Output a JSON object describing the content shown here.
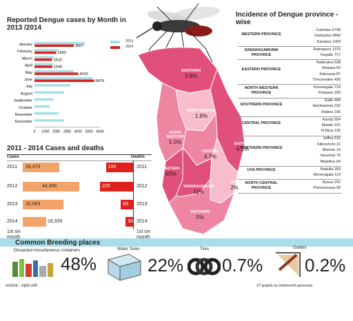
{
  "chart_data": [
    {
      "type": "bar",
      "title": "Reported Dengue cases by Month in 2013 /2014",
      "categories": [
        "January",
        "February",
        "March",
        "April",
        "May",
        "June",
        "July",
        "August",
        "September",
        "October",
        "November",
        "December"
      ],
      "series": [
        {
          "name": "2013",
          "color": "#a9dde8",
          "values": [
            4600,
            2200,
            1800,
            1700,
            3600,
            5300,
            3300,
            2700,
            1750,
            1400,
            2200,
            2700
          ]
        },
        {
          "name": "2014",
          "color": "#e0201b",
          "values": [
            3607,
            1993,
            1610,
            1640,
            4010,
            5479,
            null,
            null,
            null,
            null,
            null,
            null
          ]
        }
      ],
      "data_labels": [
        "3607",
        "1993",
        "1610",
        "1640",
        "4010",
        "5479"
      ],
      "x_ticks": [
        "0",
        "1000",
        "2000",
        "3000",
        "4000",
        "5000",
        "6000"
      ],
      "xlim": [
        0,
        6000
      ],
      "legend": [
        "2013",
        "2014"
      ],
      "legend_position": "top-right"
    },
    {
      "type": "bar",
      "title": "2011 - 2014  Cases and deaths",
      "column_headers": [
        "Cases",
        "Deaths"
      ],
      "years": [
        "2011",
        "2012",
        "2013",
        "2014 1st six month"
      ],
      "year_labels_left": [
        "2011",
        "2012",
        "2013",
        "2014"
      ],
      "year_labels_right": [
        "2011",
        "2012",
        "2013",
        "2014"
      ],
      "six_month_note": "1st six month",
      "cases": [
        28473,
        44456,
        32063,
        18339
      ],
      "cases_labels": [
        "28,473",
        "44,456",
        "32,063",
        "18,339"
      ],
      "deaths": [
        185,
        225,
        83,
        50
      ],
      "deaths_labels": [
        "185",
        "225",
        "83",
        "50"
      ]
    }
  ],
  "colors": {
    "cases": "#f4a46a",
    "deaths": "#e0201b",
    "map_dark": "#e0507a",
    "map_mid": "#ee86a2",
    "map_light": "#f7bdcc",
    "accent_blue": "#a9dde8"
  },
  "map": {
    "regions": [
      {
        "name": "NORTHERN",
        "pct": "3.8%"
      },
      {
        "name": "NORTH CENTRAL",
        "pct": "1.8%"
      },
      {
        "name": "NORTH WESTERN",
        "pct": "5.5%"
      },
      {
        "name": "CENTRAL",
        "pct": "4.7%"
      },
      {
        "name": "EASTERN",
        "pct": "6.2%"
      },
      {
        "name": "WESTERN",
        "pct": "60%"
      },
      {
        "name": "SABARAGAMUWA",
        "pct": "11%"
      },
      {
        "name": "UVA",
        "pct": "2%"
      },
      {
        "name": "SOUTHERN",
        "pct": "5%"
      }
    ]
  },
  "incidence": {
    "title": "Incidence of Dengue province -wise",
    "groups": [
      {
        "province": "WESTERN PROVINCE",
        "districts": [
          [
            "Colombo",
            "6748"
          ],
          [
            "Gampaha",
            "2840"
          ],
          [
            "Kalutara",
            "1269"
          ]
        ]
      },
      {
        "province": "SABARAGAMUWA PROVINCE",
        "districts": [
          [
            "Ratnapura",
            "1375"
          ],
          [
            "Kegalle",
            "717"
          ]
        ]
      },
      {
        "province": "EASTERN PROVINCE",
        "districts": [
          [
            "Batticaloa",
            "538"
          ],
          [
            "Ampara",
            "60"
          ],
          [
            "Kalmunai",
            "87"
          ],
          [
            "Trincomalee",
            "426"
          ]
        ]
      },
      {
        "province": "NORTH WESTERN PROVINCE",
        "districts": [
          [
            "Kurunegala",
            "719"
          ],
          [
            "Puttalam",
            "293"
          ]
        ]
      },
      {
        "province": "SOUTHERN PROVINCE",
        "districts": [
          [
            "Galle",
            "494"
          ],
          [
            "Hambantota",
            "232"
          ],
          [
            "Matara",
            "166"
          ]
        ]
      },
      {
        "province": "CENTRAL PROVINCE",
        "districts": [
          [
            "Kandy",
            "554"
          ],
          [
            "Matale",
            "161"
          ],
          [
            "N Eliya",
            "130"
          ]
        ]
      },
      {
        "province": "NORTHERN PROVINCE",
        "districts": [
          [
            "Jaffna",
            "516"
          ],
          [
            "Kilinochchi",
            "31"
          ],
          [
            "Mannar",
            "19"
          ],
          [
            "Vavuniya",
            "76"
          ],
          [
            "Mulaitivu",
            "64"
          ]
        ]
      },
      {
        "province": "UVA PROVINCE",
        "districts": [
          [
            "Badulla",
            "283"
          ],
          [
            "Moneragala",
            "119"
          ]
        ]
      },
      {
        "province": "NORTH CENTRAL PROVINCE",
        "districts": [
          [
            "A'pura",
            "241"
          ],
          [
            "Polonnaruwa",
            "99"
          ]
        ]
      }
    ]
  },
  "breeding": {
    "title": "Common Breeding places",
    "items": [
      {
        "label": "Discarded miscellaneous containers",
        "pct": "48%"
      },
      {
        "label": "Water Tanks",
        "pct": "22%"
      },
      {
        "label": "Tires",
        "pct": "0.7%"
      },
      {
        "label": "Gutters",
        "pct": "0.2%"
      }
    ]
  },
  "source": "source - epid unit",
  "credit": "ST graphic by indramurthi jayasuriya"
}
